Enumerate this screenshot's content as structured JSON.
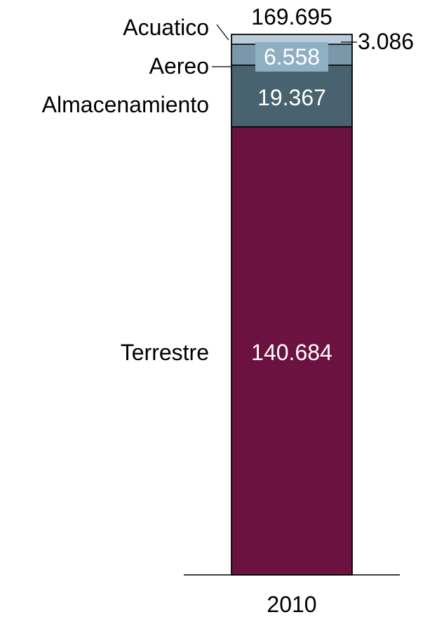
{
  "chart_data": {
    "type": "bar",
    "stacked": true,
    "categories": [
      "2010"
    ],
    "total": "169.695",
    "series": [
      {
        "name": "Terrestre",
        "values": [
          140.684
        ],
        "label": "140.684",
        "color": "#6b1240",
        "label_color": "#ffffff"
      },
      {
        "name": "Almacenamiento",
        "values": [
          19.367
        ],
        "label": "19.367",
        "color": "#48636f",
        "label_color": "#ffffff"
      },
      {
        "name": "Aereo",
        "values": [
          6.558
        ],
        "label": "6.558",
        "color": "#7a98aa",
        "label_color": "#ffffff"
      },
      {
        "name": "Acuatico",
        "values": [
          3.086
        ],
        "label": "3.086",
        "color": "#b8cdd9",
        "label_color": "#000000"
      }
    ],
    "title": "",
    "xlabel": "",
    "ylabel": "",
    "ylim": [
      0,
      169.695
    ],
    "grid": false,
    "legend": "none"
  }
}
